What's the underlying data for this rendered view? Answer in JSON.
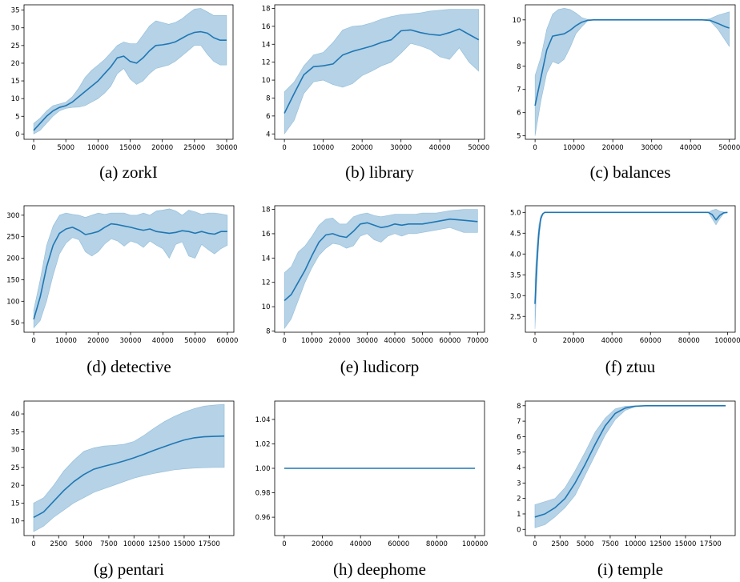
{
  "colors": {
    "line": "#1f77b4",
    "band": "#1f77b4"
  },
  "chart_data": [
    {
      "type": "line",
      "caption": "(a) zorkI",
      "xlim": [
        -1500,
        31000
      ],
      "ylim": [
        -1.5,
        36.5
      ],
      "xticks": [
        0,
        5000,
        10000,
        15000,
        20000,
        25000,
        30000
      ],
      "yticks": [
        0,
        5,
        10,
        15,
        20,
        25,
        30,
        35
      ],
      "x": [
        0,
        1000,
        2000,
        3000,
        4000,
        5000,
        6000,
        7000,
        8000,
        9000,
        10000,
        11000,
        12000,
        13000,
        14000,
        15000,
        16000,
        17000,
        18000,
        19000,
        20000,
        21000,
        22000,
        23000,
        24000,
        25000,
        26000,
        27000,
        28000,
        29000,
        30000
      ],
      "y": [
        1,
        3,
        5,
        6.5,
        7.5,
        8,
        9,
        10.5,
        12,
        13.5,
        15,
        17,
        19,
        21.5,
        22,
        20.5,
        20,
        21.5,
        23.5,
        25,
        25.2,
        25.5,
        26,
        27,
        28,
        28.7,
        28.9,
        28.5,
        27.2,
        26.5,
        26.5
      ],
      "lower": [
        0,
        1,
        3,
        5,
        6.5,
        7.2,
        7.5,
        7.6,
        8,
        9,
        10,
        11.5,
        13.5,
        17,
        18.5,
        15.5,
        14,
        15,
        17,
        18.5,
        19,
        19.5,
        20.5,
        22,
        23.5,
        25,
        25,
        22.5,
        20.5,
        19.5,
        19.5
      ],
      "upper": [
        3,
        4.5,
        6.5,
        8,
        8.5,
        9,
        10.5,
        13,
        16,
        18,
        19.5,
        21,
        23,
        25,
        26,
        25.5,
        25.5,
        28,
        30.5,
        32,
        31.5,
        31,
        31.5,
        32.5,
        34,
        35.3,
        35.5,
        34.5,
        33.5,
        33.5,
        33.5
      ]
    },
    {
      "type": "line",
      "caption": "(b) library",
      "xlim": [
        -2500,
        51500
      ],
      "ylim": [
        3.4,
        18.4
      ],
      "xticks": [
        0,
        10000,
        20000,
        30000,
        40000,
        50000
      ],
      "yticks": [
        4,
        6,
        8,
        10,
        12,
        14,
        16,
        18
      ],
      "x": [
        0,
        2500,
        5000,
        7500,
        10000,
        12500,
        15000,
        17500,
        20000,
        22500,
        25000,
        27500,
        30000,
        32500,
        35000,
        37500,
        40000,
        42500,
        45000,
        47500,
        50000
      ],
      "y": [
        6.3,
        8.5,
        10.6,
        11.5,
        11.6,
        11.8,
        12.8,
        13.2,
        13.5,
        13.8,
        14.2,
        14.5,
        15.5,
        15.6,
        15.3,
        15.1,
        15,
        15.3,
        15.7,
        15.1,
        14.5
      ],
      "lower": [
        4,
        5.5,
        8.5,
        9.8,
        10,
        9.5,
        9.2,
        9.6,
        10.5,
        11,
        11.6,
        12,
        13,
        14.1,
        13.8,
        13.4,
        12.6,
        12.3,
        13.6,
        12,
        11
      ],
      "upper": [
        8.7,
        9.8,
        11.6,
        12.8,
        13.1,
        14.2,
        15.6,
        16,
        16.1,
        16.4,
        16.8,
        17.1,
        17.3,
        17.4,
        17.5,
        17.7,
        17.8,
        17.9,
        17.9,
        17.9,
        17.9
      ]
    },
    {
      "type": "line",
      "caption": "(c) balances",
      "xlim": [
        -2500,
        51500
      ],
      "ylim": [
        4.85,
        10.65
      ],
      "xticks": [
        0,
        10000,
        20000,
        30000,
        40000,
        50000
      ],
      "yticks": [
        5,
        6,
        7,
        8,
        9,
        10
      ],
      "x": [
        0,
        1500,
        3000,
        4500,
        6000,
        7500,
        9000,
        10500,
        12000,
        13500,
        15000,
        20000,
        30000,
        40000,
        43000,
        45000,
        47000,
        49000,
        50000
      ],
      "y": [
        6.3,
        7.5,
        8.7,
        9.3,
        9.35,
        9.4,
        9.55,
        9.75,
        9.9,
        9.98,
        10,
        10,
        10,
        10,
        10,
        9.98,
        9.85,
        9.7,
        9.65
      ],
      "lower": [
        5,
        6.5,
        7.7,
        8.2,
        8.1,
        8.3,
        8.8,
        9.4,
        9.7,
        9.95,
        10,
        10,
        10,
        10,
        10,
        9.95,
        9.6,
        9.1,
        8.85
      ],
      "upper": [
        7.6,
        8.4,
        9.6,
        10.25,
        10.45,
        10.5,
        10.45,
        10.3,
        10.1,
        10.02,
        10,
        10,
        10,
        10,
        10,
        10.05,
        10.2,
        10.3,
        10.35
      ]
    },
    {
      "type": "line",
      "caption": "(d) detective",
      "xlim": [
        -3000,
        62000
      ],
      "ylim": [
        28,
        322
      ],
      "xticks": [
        0,
        10000,
        20000,
        30000,
        40000,
        50000,
        60000
      ],
      "yticks": [
        50,
        100,
        150,
        200,
        250,
        300
      ],
      "x": [
        0,
        2000,
        4000,
        6000,
        8000,
        10000,
        12000,
        14000,
        16000,
        18000,
        20000,
        22000,
        24000,
        26000,
        28000,
        30000,
        32000,
        34000,
        36000,
        38000,
        40000,
        42000,
        44000,
        46000,
        48000,
        50000,
        52000,
        54000,
        56000,
        58000,
        60000
      ],
      "y": [
        58,
        110,
        180,
        230,
        258,
        268,
        272,
        265,
        255,
        258,
        262,
        272,
        280,
        278,
        275,
        272,
        268,
        265,
        268,
        262,
        260,
        258,
        260,
        264,
        262,
        258,
        262,
        258,
        256,
        262,
        262
      ],
      "lower": [
        38,
        55,
        100,
        160,
        210,
        235,
        248,
        243,
        215,
        205,
        215,
        233,
        245,
        240,
        228,
        240,
        235,
        225,
        240,
        230,
        222,
        200,
        232,
        238,
        205,
        200,
        232,
        220,
        210,
        222,
        230
      ],
      "upper": [
        80,
        150,
        230,
        275,
        300,
        305,
        302,
        300,
        295,
        300,
        305,
        302,
        305,
        305,
        305,
        300,
        300,
        305,
        300,
        310,
        312,
        315,
        310,
        300,
        312,
        308,
        302,
        305,
        305,
        303,
        300
      ]
    },
    {
      "type": "line",
      "caption": "(e) ludicorp",
      "xlim": [
        -3500,
        72500
      ],
      "ylim": [
        7.9,
        18.3
      ],
      "xticks": [
        0,
        10000,
        20000,
        30000,
        40000,
        50000,
        60000,
        70000
      ],
      "yticks": [
        8,
        10,
        12,
        14,
        16,
        18
      ],
      "x": [
        0,
        2500,
        5000,
        7500,
        10000,
        12500,
        15000,
        17500,
        20000,
        22500,
        25000,
        27500,
        30000,
        32500,
        35000,
        37500,
        40000,
        42500,
        45000,
        47500,
        50000,
        55000,
        60000,
        65000,
        70000
      ],
      "y": [
        10.5,
        11,
        12,
        13,
        14.2,
        15.3,
        15.9,
        16,
        15.8,
        15.7,
        16.2,
        16.8,
        16.9,
        16.7,
        16.5,
        16.6,
        16.8,
        16.7,
        16.8,
        16.8,
        16.8,
        17,
        17.2,
        17.1,
        17
      ],
      "lower": [
        8.2,
        9,
        10.5,
        12,
        13.2,
        14.2,
        14.8,
        15.2,
        15.1,
        14.8,
        15,
        15.8,
        16,
        15.5,
        15.3,
        15.8,
        16,
        15.8,
        16,
        16,
        16.1,
        16.3,
        16.5,
        16.1,
        16.1
      ],
      "upper": [
        12.8,
        13.3,
        14.5,
        15,
        15.8,
        16.7,
        17.2,
        17.3,
        16.8,
        16.8,
        17.4,
        17.6,
        17.7,
        17.5,
        17.4,
        17.5,
        17.6,
        17.6,
        17.6,
        17.6,
        17.7,
        17.7,
        17.9,
        18,
        18
      ]
    },
    {
      "type": "line",
      "caption": "(f) ztuu",
      "xlim": [
        -5000,
        104000
      ],
      "ylim": [
        2.12,
        5.16
      ],
      "xticks": [
        0,
        20000,
        40000,
        60000,
        80000,
        100000
      ],
      "yticks": [
        2.5,
        3.0,
        3.5,
        4.0,
        4.5,
        5.0
      ],
      "tick_format": "1dp",
      "x": [
        0,
        1000,
        2000,
        3000,
        4000,
        5000,
        6000,
        8000,
        10000,
        20000,
        40000,
        60000,
        80000,
        90000,
        92000,
        94000,
        96000,
        98000,
        100000
      ],
      "y": [
        2.8,
        3.8,
        4.5,
        4.85,
        4.96,
        5,
        5,
        5,
        5,
        5,
        5,
        5,
        5,
        5,
        4.95,
        4.82,
        4.93,
        4.99,
        5
      ],
      "lower": [
        2.2,
        3.4,
        4.3,
        4.78,
        4.94,
        5,
        5,
        5,
        5,
        5,
        5,
        5,
        5,
        5,
        4.85,
        4.7,
        4.85,
        4.97,
        5
      ],
      "upper": [
        3.4,
        4.2,
        4.7,
        4.92,
        4.98,
        5,
        5,
        5,
        5,
        5,
        5,
        5,
        5,
        5,
        5.05,
        5.08,
        5.03,
        5.01,
        5
      ]
    },
    {
      "type": "line",
      "caption": "(g) pentari",
      "xlim": [
        -950,
        19950
      ],
      "ylim": [
        5.9,
        43.6
      ],
      "xticks": [
        0,
        2500,
        5000,
        7500,
        10000,
        12500,
        15000,
        17500
      ],
      "yticks": [
        10,
        15,
        20,
        25,
        30,
        35,
        40
      ],
      "x": [
        0,
        1000,
        2000,
        3000,
        4000,
        5000,
        6000,
        7000,
        8000,
        9000,
        10000,
        11000,
        12000,
        13000,
        14000,
        15000,
        16000,
        17000,
        18000,
        19000
      ],
      "y": [
        11,
        12.5,
        15.5,
        18.5,
        21,
        23,
        24.5,
        25.3,
        26,
        26.8,
        27.7,
        28.7,
        29.8,
        30.8,
        31.8,
        32.7,
        33.3,
        33.6,
        33.7,
        33.8
      ],
      "lower": [
        7,
        8.5,
        11,
        13,
        15,
        16.5,
        18,
        19,
        20,
        21,
        22,
        22.7,
        23.3,
        23.8,
        24.3,
        24.6,
        24.8,
        24.9,
        25,
        25
      ],
      "upper": [
        15,
        16.5,
        20,
        24,
        27,
        29.5,
        30.5,
        31,
        31.2,
        31.5,
        32.3,
        34,
        36,
        37.8,
        39.3,
        40.5,
        41.5,
        42.2,
        42.5,
        42.7
      ]
    },
    {
      "type": "line",
      "caption": "(h) deephome",
      "xlim": [
        -5000,
        105000
      ],
      "ylim": [
        0.945,
        1.055
      ],
      "xticks": [
        0,
        20000,
        40000,
        60000,
        80000,
        100000
      ],
      "yticks": [
        0.96,
        0.98,
        1.0,
        1.02,
        1.04
      ],
      "tick_format": "2dp",
      "x": [
        0,
        100000
      ],
      "y": [
        1,
        1
      ],
      "lower": [
        1,
        1
      ],
      "upper": [
        1,
        1
      ]
    },
    {
      "type": "line",
      "caption": "(i) temple",
      "xlim": [
        -950,
        19950
      ],
      "ylim": [
        -0.4,
        8.3
      ],
      "xticks": [
        0,
        2500,
        5000,
        7500,
        10000,
        12500,
        15000,
        17500
      ],
      "yticks": [
        0,
        1,
        2,
        3,
        4,
        5,
        6,
        7,
        8
      ],
      "x": [
        0,
        1000,
        2000,
        3000,
        4000,
        5000,
        6000,
        7000,
        8000,
        9000,
        10000,
        11000,
        12000,
        13000,
        14000,
        15000,
        16000,
        17000,
        18000,
        19000
      ],
      "y": [
        0.8,
        1,
        1.4,
        2,
        3,
        4.2,
        5.5,
        6.7,
        7.5,
        7.85,
        7.97,
        8,
        8,
        8,
        8,
        8,
        8,
        8,
        8,
        8
      ],
      "lower": [
        0.1,
        0.3,
        0.8,
        1.4,
        2.2,
        3.5,
        4.8,
        6.1,
        7.1,
        7.7,
        7.93,
        8,
        8,
        8,
        8,
        8,
        8,
        8,
        8,
        8
      ],
      "upper": [
        1.6,
        1.8,
        2,
        2.7,
        3.8,
        5,
        6.3,
        7.2,
        7.8,
        7.97,
        8,
        8,
        8,
        8,
        8,
        8,
        8,
        8,
        8,
        8
      ]
    }
  ]
}
